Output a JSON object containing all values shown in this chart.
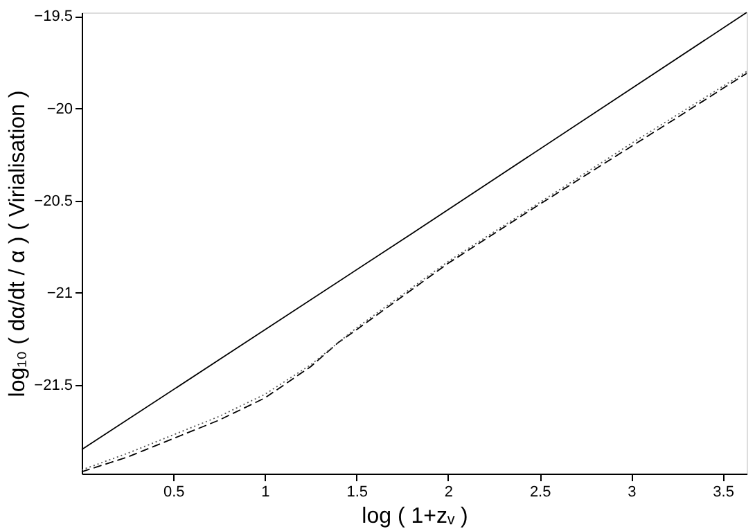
{
  "chart_data": {
    "type": "line",
    "xlabel": "log ( 1+zᵥ )",
    "ylabel": "log₁₀ ( dα/dt / α )    ( Virialisation )",
    "xlim": [
      0,
      3.63
    ],
    "ylim": [
      -21.98,
      -19.48
    ],
    "xticks": [
      0.5,
      1,
      1.5,
      2,
      2.5,
      3,
      3.5
    ],
    "yticks": [
      -21.5,
      -21,
      -20.5,
      -20,
      -19.5
    ],
    "grid": false,
    "series": [
      {
        "color": "#000000",
        "line_style": "solid",
        "x": [
          0,
          1.8,
          3.63
        ],
        "values": [
          -21.85,
          -20.68,
          -19.48
        ]
      },
      {
        "color": "#000000",
        "line_style": "dashed",
        "x": [
          0,
          0.25,
          0.5,
          0.75,
          1,
          1.25,
          1.4,
          1.5,
          2,
          2.5,
          2.85,
          3.25,
          3.63
        ],
        "values": [
          -21.97,
          -21.89,
          -21.79,
          -21.69,
          -21.57,
          -21.4,
          -21.27,
          -21.2,
          -20.84,
          -20.52,
          -20.3,
          -20.05,
          -19.81
        ]
      },
      {
        "color": "#555555",
        "line_style": "dotted",
        "x": [
          0,
          0.25,
          0.5,
          0.75,
          1,
          1.25,
          1.5,
          2,
          2.5,
          3,
          3.63
        ],
        "values": [
          -21.96,
          -21.87,
          -21.77,
          -21.67,
          -21.55,
          -21.39,
          -21.19,
          -20.83,
          -20.51,
          -20.19,
          -19.8
        ]
      }
    ]
  }
}
